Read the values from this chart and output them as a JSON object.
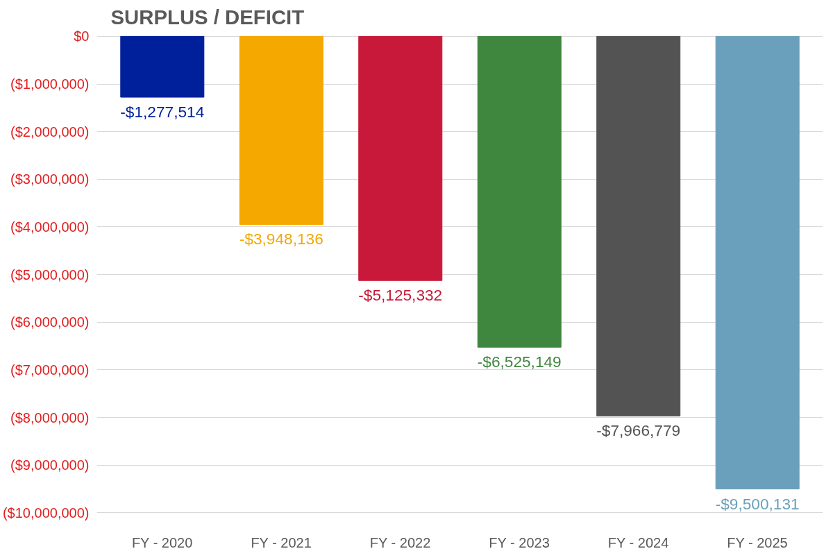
{
  "chart_data": {
    "type": "bar",
    "title": "SURPLUS / DEFICIT",
    "categories": [
      "FY - 2020",
      "FY - 2021",
      "FY - 2022",
      "FY - 2023",
      "FY - 2024",
      "FY - 2025"
    ],
    "values": [
      -1277514,
      -3948136,
      -5125332,
      -6525149,
      -7966779,
      -9500131
    ],
    "colors": [
      "#00209b",
      "#f4a800",
      "#c8193a",
      "#3f873f",
      "#535353",
      "#6aa0bb"
    ],
    "value_labels": [
      "-$1,277,514",
      "-$3,948,136",
      "-$5,125,332",
      "-$6,525,149",
      "-$7,966,779",
      "-$9,500,131"
    ],
    "ylim": [
      -10000000,
      0
    ],
    "yticks": [
      {
        "value": 0,
        "label": "$0"
      },
      {
        "value": -1000000,
        "label": "($1,000,000)"
      },
      {
        "value": -2000000,
        "label": "($2,000,000)"
      },
      {
        "value": -3000000,
        "label": "($3,000,000)"
      },
      {
        "value": -4000000,
        "label": "($4,000,000)"
      },
      {
        "value": -5000000,
        "label": "($5,000,000)"
      },
      {
        "value": -6000000,
        "label": "($6,000,000)"
      },
      {
        "value": -7000000,
        "label": "($7,000,000)"
      },
      {
        "value": -8000000,
        "label": "($8,000,000)"
      },
      {
        "value": -9000000,
        "label": "($9,000,000)"
      },
      {
        "value": -10000000,
        "label": "($10,000,000)"
      }
    ],
    "grid": "y"
  }
}
